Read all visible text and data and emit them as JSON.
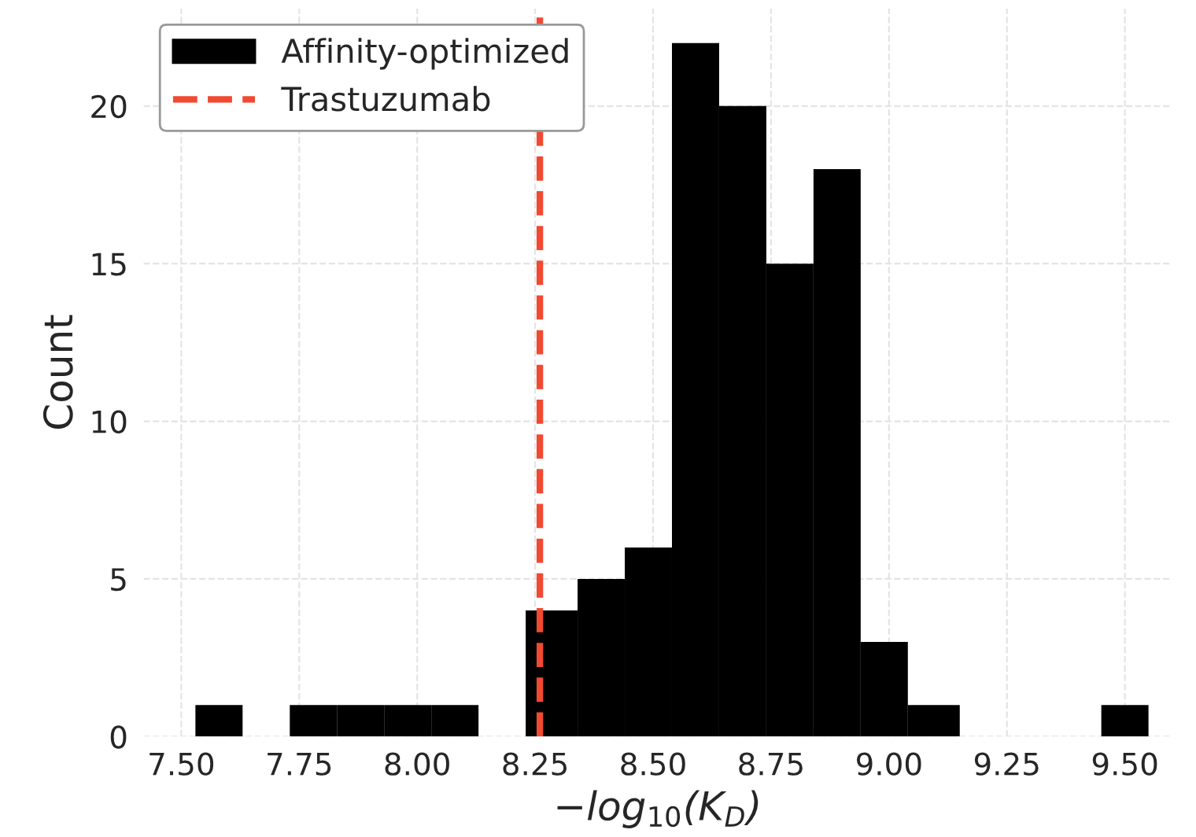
{
  "chart_data": {
    "type": "histogram",
    "xlabel": "−log$_{10}$(K$_{D}$)",
    "ylabel": "Count",
    "bins": [
      7.53,
      7.63,
      7.73,
      7.83,
      7.93,
      8.03,
      8.13,
      8.23,
      8.34,
      8.44,
      8.54,
      8.64,
      8.74,
      8.84,
      8.94,
      9.04,
      9.15,
      9.45,
      9.55
    ],
    "series": [
      {
        "name": "Affinity-optimized",
        "color": "#000000",
        "values": [
          1,
          0,
          1,
          1,
          1,
          1,
          0,
          4,
          5,
          6,
          22,
          20,
          15,
          18,
          3,
          1,
          0,
          1
        ]
      }
    ],
    "ref_lines": [
      {
        "axis": "x",
        "value": 8.26,
        "label": "Trastuzumab",
        "color": "#f04a32",
        "line_style": "dashed"
      }
    ],
    "xlim": [
      7.42,
      9.6
    ],
    "ylim": [
      0,
      23.1
    ],
    "xticks": [
      {
        "value": 7.5,
        "label": "7.50"
      },
      {
        "value": 7.75,
        "label": "7.75"
      },
      {
        "value": 8.0,
        "label": "8.00"
      },
      {
        "value": 8.25,
        "label": "8.25"
      },
      {
        "value": 8.5,
        "label": "8.50"
      },
      {
        "value": 8.75,
        "label": "8.75"
      },
      {
        "value": 9.0,
        "label": "9.00"
      },
      {
        "value": 9.25,
        "label": "9.25"
      },
      {
        "value": 9.5,
        "label": "9.50"
      }
    ],
    "yticks": [
      0,
      5,
      10,
      15,
      20
    ],
    "grid": true,
    "legend": "top left"
  }
}
